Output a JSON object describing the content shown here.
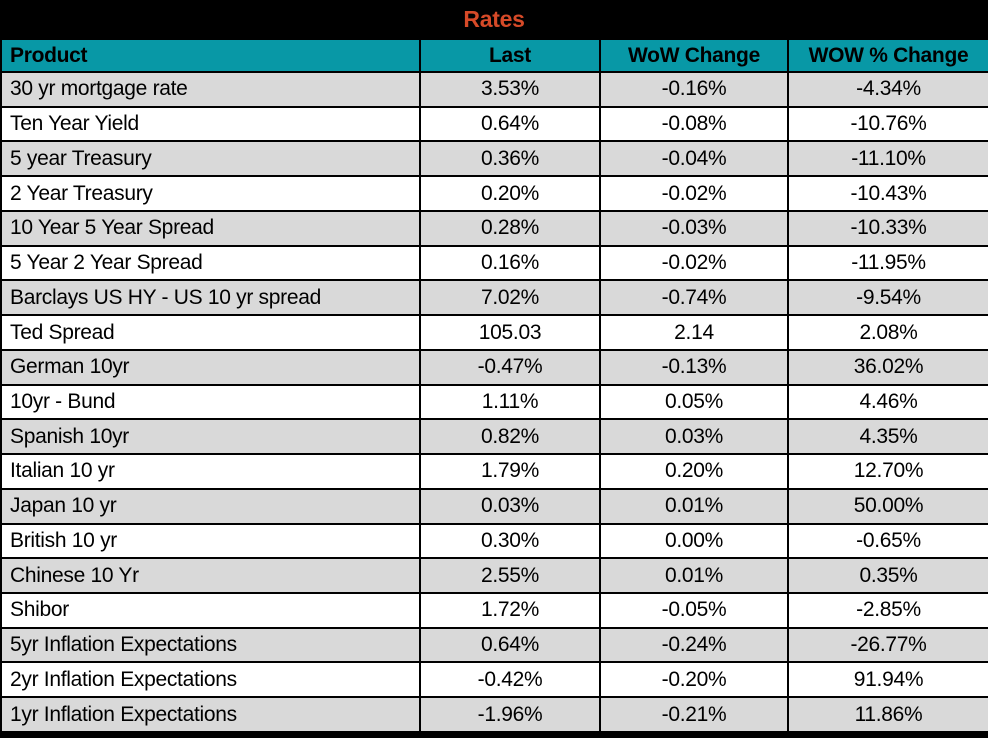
{
  "colors": {
    "title_text": "#d64a28",
    "header_bg": "#0898a6",
    "row_alt_bg": "#d9d9d9",
    "row_bg": "#ffffff",
    "frame": "#000000",
    "text": "#000000"
  },
  "chart_data": {
    "type": "table",
    "title": "Rates",
    "columns": [
      "Product",
      "Last",
      "WoW Change",
      "WOW % Change"
    ],
    "rows": [
      {
        "product": "30 yr mortgage rate",
        "last": "3.53%",
        "wow_change": "-0.16%",
        "wow_pct_change": "-4.34%"
      },
      {
        "product": "Ten Year Yield",
        "last": "0.64%",
        "wow_change": "-0.08%",
        "wow_pct_change": "-10.76%"
      },
      {
        "product": "5 year Treasury",
        "last": "0.36%",
        "wow_change": "-0.04%",
        "wow_pct_change": "-11.10%"
      },
      {
        "product": "2 Year Treasury",
        "last": "0.20%",
        "wow_change": "-0.02%",
        "wow_pct_change": "-10.43%"
      },
      {
        "product": "10 Year 5 Year Spread",
        "last": "0.28%",
        "wow_change": "-0.03%",
        "wow_pct_change": "-10.33%"
      },
      {
        "product": "5 Year 2 Year Spread",
        "last": "0.16%",
        "wow_change": "-0.02%",
        "wow_pct_change": "-11.95%"
      },
      {
        "product": "Barclays US HY - US 10 yr spread",
        "last": "7.02%",
        "wow_change": "-0.74%",
        "wow_pct_change": "-9.54%"
      },
      {
        "product": "Ted Spread",
        "last": "105.03",
        "wow_change": "2.14",
        "wow_pct_change": "2.08%"
      },
      {
        "product": "German 10yr",
        "last": "-0.47%",
        "wow_change": "-0.13%",
        "wow_pct_change": "36.02%"
      },
      {
        "product": "10yr - Bund",
        "last": "1.11%",
        "wow_change": "0.05%",
        "wow_pct_change": "4.46%"
      },
      {
        "product": "Spanish 10yr",
        "last": "0.82%",
        "wow_change": "0.03%",
        "wow_pct_change": "4.35%"
      },
      {
        "product": "Italian 10 yr",
        "last": "1.79%",
        "wow_change": "0.20%",
        "wow_pct_change": "12.70%"
      },
      {
        "product": "Japan 10 yr",
        "last": "0.03%",
        "wow_change": "0.01%",
        "wow_pct_change": "50.00%"
      },
      {
        "product": "British 10 yr",
        "last": "0.30%",
        "wow_change": "0.00%",
        "wow_pct_change": "-0.65%"
      },
      {
        "product": "Chinese 10 Yr",
        "last": "2.55%",
        "wow_change": "0.01%",
        "wow_pct_change": "0.35%"
      },
      {
        "product": "Shibor",
        "last": "1.72%",
        "wow_change": "-0.05%",
        "wow_pct_change": "-2.85%"
      },
      {
        "product": "5yr Inflation Expectations",
        "last": "0.64%",
        "wow_change": "-0.24%",
        "wow_pct_change": "-26.77%"
      },
      {
        "product": "2yr Inflation Expectations",
        "last": "-0.42%",
        "wow_change": "-0.20%",
        "wow_pct_change": "91.94%"
      },
      {
        "product": "1yr Inflation Expectations",
        "last": "-1.96%",
        "wow_change": "-0.21%",
        "wow_pct_change": "11.86%"
      }
    ]
  }
}
